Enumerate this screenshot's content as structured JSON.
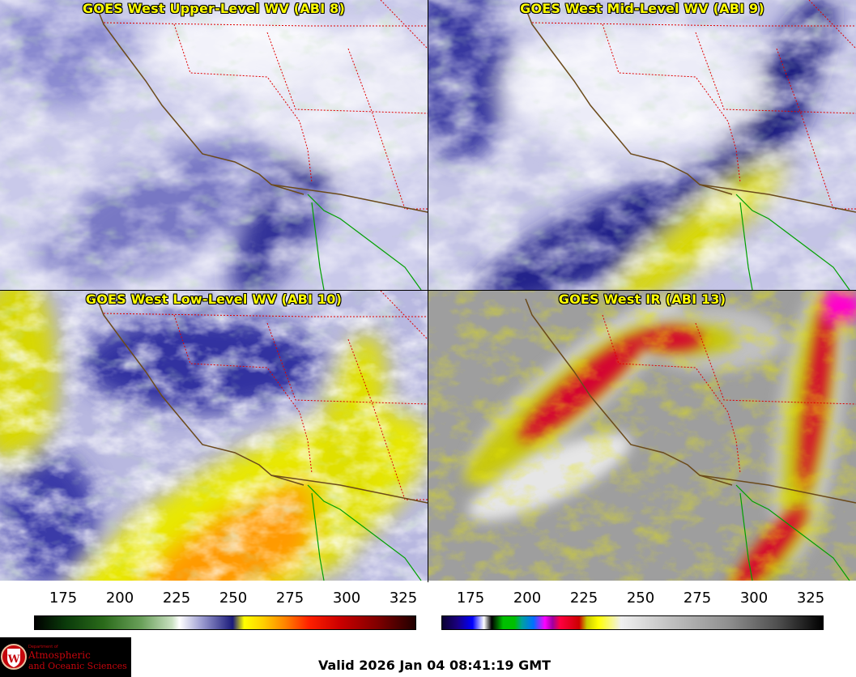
{
  "panels": [
    {
      "id": "upper",
      "title": "GOES West Upper-Level WV (ABI 8)"
    },
    {
      "id": "mid",
      "title": "GOES West Mid-Level WV (ABI 9)"
    },
    {
      "id": "low",
      "title": "GOES West Low-Level WV (ABI 10)"
    },
    {
      "id": "ir",
      "title": "GOES West IR (ABI 13)"
    }
  ],
  "wv_scale": {
    "ticks": [
      "175",
      "200",
      "225",
      "250",
      "275",
      "300",
      "325"
    ]
  },
  "ir_scale": {
    "ticks": [
      "175",
      "200",
      "225",
      "250",
      "275",
      "300",
      "325"
    ]
  },
  "logo": {
    "dept": "Department of",
    "line1": "Atmospheric",
    "line2": "and Oceanic Sciences",
    "shield_letter": "W"
  },
  "valid_time": "Valid 2026 Jan 04 08:41:19 GMT",
  "colors": {
    "wv_moist": "#ffffff",
    "wv_dry": "#2a2a8c",
    "wv_very_dry": "#ffff00",
    "ir_cold": "#d40030",
    "ir_mid": "#cccc00",
    "ir_warm": "#9c9c9c",
    "coast": "#6b4a1a",
    "border": "#ff0000",
    "mexico": "#00a000"
  }
}
